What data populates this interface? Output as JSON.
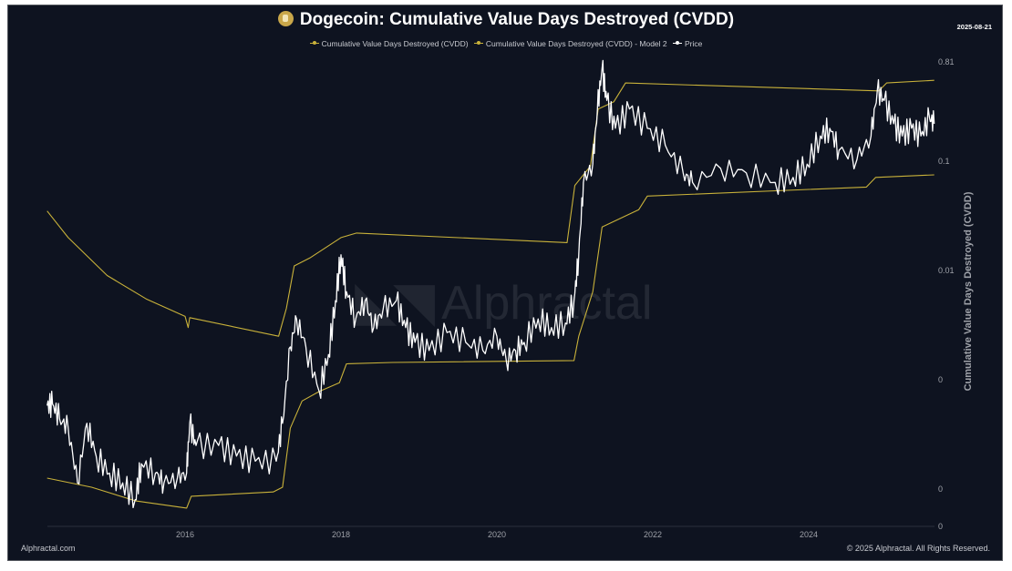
{
  "title": "Dogecoin: Cumulative Value Days Destroyed (CVDD)",
  "date": "2025-08-21",
  "watermark": {
    "logo": "AP",
    "text": "Alphractal"
  },
  "footer": {
    "left": "Alphractal.com",
    "right": "© 2025 Alphractal. All Rights Reserved."
  },
  "colors": {
    "background": "#0e1320",
    "band": "#c9b23a",
    "price": "#ffffff"
  },
  "chart_data": {
    "type": "line",
    "title": "Dogecoin: Cumulative Value Days Destroyed (CVDD)",
    "ylabel": "Cumulative Value Days Destroyed (CVDD)",
    "yscale": "log",
    "ylim": [
      4.5e-05,
      1.06
    ],
    "xlim": [
      2014.05,
      2025.65
    ],
    "grid": false,
    "legend": "top",
    "xticks": [
      {
        "v": 2016,
        "label": "2016"
      },
      {
        "v": 2018,
        "label": "2018"
      },
      {
        "v": 2020,
        "label": "2020"
      },
      {
        "v": 2022,
        "label": "2022"
      },
      {
        "v": 2024,
        "label": "2024"
      }
    ],
    "yticks": [
      {
        "v": 0.81,
        "label": "0.81"
      },
      {
        "v": 0.1,
        "label": "0.1"
      },
      {
        "v": 0.01,
        "label": "0.01"
      },
      {
        "v": 0.001,
        "label": "0"
      },
      {
        "v": 0.0001,
        "label": "0"
      },
      {
        "v": 4.5e-05,
        "label": "0"
      }
    ],
    "series": [
      {
        "name": "Cumulative Value Days Destroyed (CVDD)",
        "color": "#c9b23a",
        "points": [
          [
            2014.23,
            0.035
          ],
          [
            2014.5,
            0.02
          ],
          [
            2015.0,
            0.009
          ],
          [
            2015.5,
            0.0055
          ],
          [
            2016.0,
            0.0038
          ],
          [
            2016.04,
            0.003
          ],
          [
            2016.06,
            0.0037
          ],
          [
            2017.2,
            0.0025
          ],
          [
            2017.3,
            0.0045
          ],
          [
            2017.4,
            0.011
          ],
          [
            2017.6,
            0.013
          ],
          [
            2018.0,
            0.02
          ],
          [
            2018.2,
            0.022
          ],
          [
            2020.9,
            0.018
          ],
          [
            2021.0,
            0.06
          ],
          [
            2021.2,
            0.09
          ],
          [
            2021.3,
            0.3
          ],
          [
            2021.5,
            0.35
          ],
          [
            2021.65,
            0.52
          ],
          [
            2024.9,
            0.44
          ],
          [
            2025.0,
            0.52
          ],
          [
            2025.61,
            0.55
          ]
        ]
      },
      {
        "name": "Cumulative Value Days Destroyed (CVDD) - Model 2",
        "color": "#c9b23a",
        "points": [
          [
            2014.23,
            0.000126
          ],
          [
            2014.8,
            0.000104
          ],
          [
            2015.36,
            7.8e-05
          ],
          [
            2016.02,
            6.7e-05
          ],
          [
            2016.08,
            8.6e-05
          ],
          [
            2017.13,
            9.4e-05
          ],
          [
            2017.25,
            0.000104
          ],
          [
            2017.35,
            0.00036
          ],
          [
            2017.5,
            0.00064
          ],
          [
            2017.72,
            0.00078
          ],
          [
            2017.98,
            0.00094
          ],
          [
            2018.07,
            0.0014
          ],
          [
            2018.66,
            0.00144
          ],
          [
            2020.99,
            0.0015
          ],
          [
            2021.05,
            0.0025
          ],
          [
            2021.23,
            0.0064
          ],
          [
            2021.35,
            0.025
          ],
          [
            2021.82,
            0.036
          ],
          [
            2021.93,
            0.048
          ],
          [
            2024.74,
            0.058
          ],
          [
            2024.86,
            0.071
          ],
          [
            2025.61,
            0.075
          ]
        ]
      },
      {
        "name": "Price",
        "color": "#ffffff",
        "points": [
          [
            2014.23,
            0.00058
          ],
          [
            2014.3,
            0.0006
          ],
          [
            2014.39,
            0.00044
          ],
          [
            2014.5,
            0.00036
          ],
          [
            2014.62,
            0.000114
          ],
          [
            2014.74,
            0.0004
          ],
          [
            2014.86,
            0.0002
          ],
          [
            2015.03,
            0.00014
          ],
          [
            2015.2,
            0.000114
          ],
          [
            2015.36,
            8e-05
          ],
          [
            2015.44,
            0.00017
          ],
          [
            2015.62,
            0.00014
          ],
          [
            2015.73,
            0.000114
          ],
          [
            2015.9,
            0.000126
          ],
          [
            2016.02,
            0.00014
          ],
          [
            2016.06,
            0.0004
          ],
          [
            2016.14,
            0.00025
          ],
          [
            2016.43,
            0.00025
          ],
          [
            2016.66,
            0.0002
          ],
          [
            2016.9,
            0.00018
          ],
          [
            2017.17,
            0.00018
          ],
          [
            2017.25,
            0.0004
          ],
          [
            2017.35,
            0.002
          ],
          [
            2017.43,
            0.0036
          ],
          [
            2017.55,
            0.002
          ],
          [
            2017.72,
            0.00078
          ],
          [
            2017.84,
            0.0017
          ],
          [
            2017.93,
            0.0053
          ],
          [
            2018.0,
            0.0139
          ],
          [
            2018.07,
            0.0064
          ],
          [
            2018.19,
            0.0036
          ],
          [
            2018.31,
            0.0053
          ],
          [
            2018.42,
            0.003
          ],
          [
            2018.54,
            0.0044
          ],
          [
            2018.71,
            0.0053
          ],
          [
            2018.83,
            0.003
          ],
          [
            2018.95,
            0.0022
          ],
          [
            2019.13,
            0.00185
          ],
          [
            2019.36,
            0.0027
          ],
          [
            2019.6,
            0.0022
          ],
          [
            2019.82,
            0.00185
          ],
          [
            2020.0,
            0.0025
          ],
          [
            2020.12,
            0.0015
          ],
          [
            2020.24,
            0.00185
          ],
          [
            2020.35,
            0.0022
          ],
          [
            2020.53,
            0.0036
          ],
          [
            2020.7,
            0.003
          ],
          [
            2020.88,
            0.0033
          ],
          [
            2020.99,
            0.0053
          ],
          [
            2021.05,
            0.0139
          ],
          [
            2021.11,
            0.064
          ],
          [
            2021.23,
            0.094
          ],
          [
            2021.29,
            0.3
          ],
          [
            2021.35,
            0.71
          ],
          [
            2021.41,
            0.36
          ],
          [
            2021.52,
            0.2
          ],
          [
            2021.7,
            0.3
          ],
          [
            2021.93,
            0.2
          ],
          [
            2022.16,
            0.14
          ],
          [
            2022.39,
            0.078
          ],
          [
            2022.51,
            0.064
          ],
          [
            2022.87,
            0.086
          ],
          [
            2023.2,
            0.078
          ],
          [
            2023.57,
            0.064
          ],
          [
            2023.8,
            0.071
          ],
          [
            2023.98,
            0.094
          ],
          [
            2024.15,
            0.17
          ],
          [
            2024.27,
            0.2
          ],
          [
            2024.39,
            0.126
          ],
          [
            2024.62,
            0.104
          ],
          [
            2024.8,
            0.17
          ],
          [
            2024.88,
            0.44
          ],
          [
            2024.97,
            0.36
          ],
          [
            2025.09,
            0.22
          ],
          [
            2025.2,
            0.17
          ],
          [
            2025.32,
            0.2
          ],
          [
            2025.44,
            0.17
          ],
          [
            2025.55,
            0.25
          ],
          [
            2025.61,
            0.22
          ]
        ]
      }
    ]
  }
}
